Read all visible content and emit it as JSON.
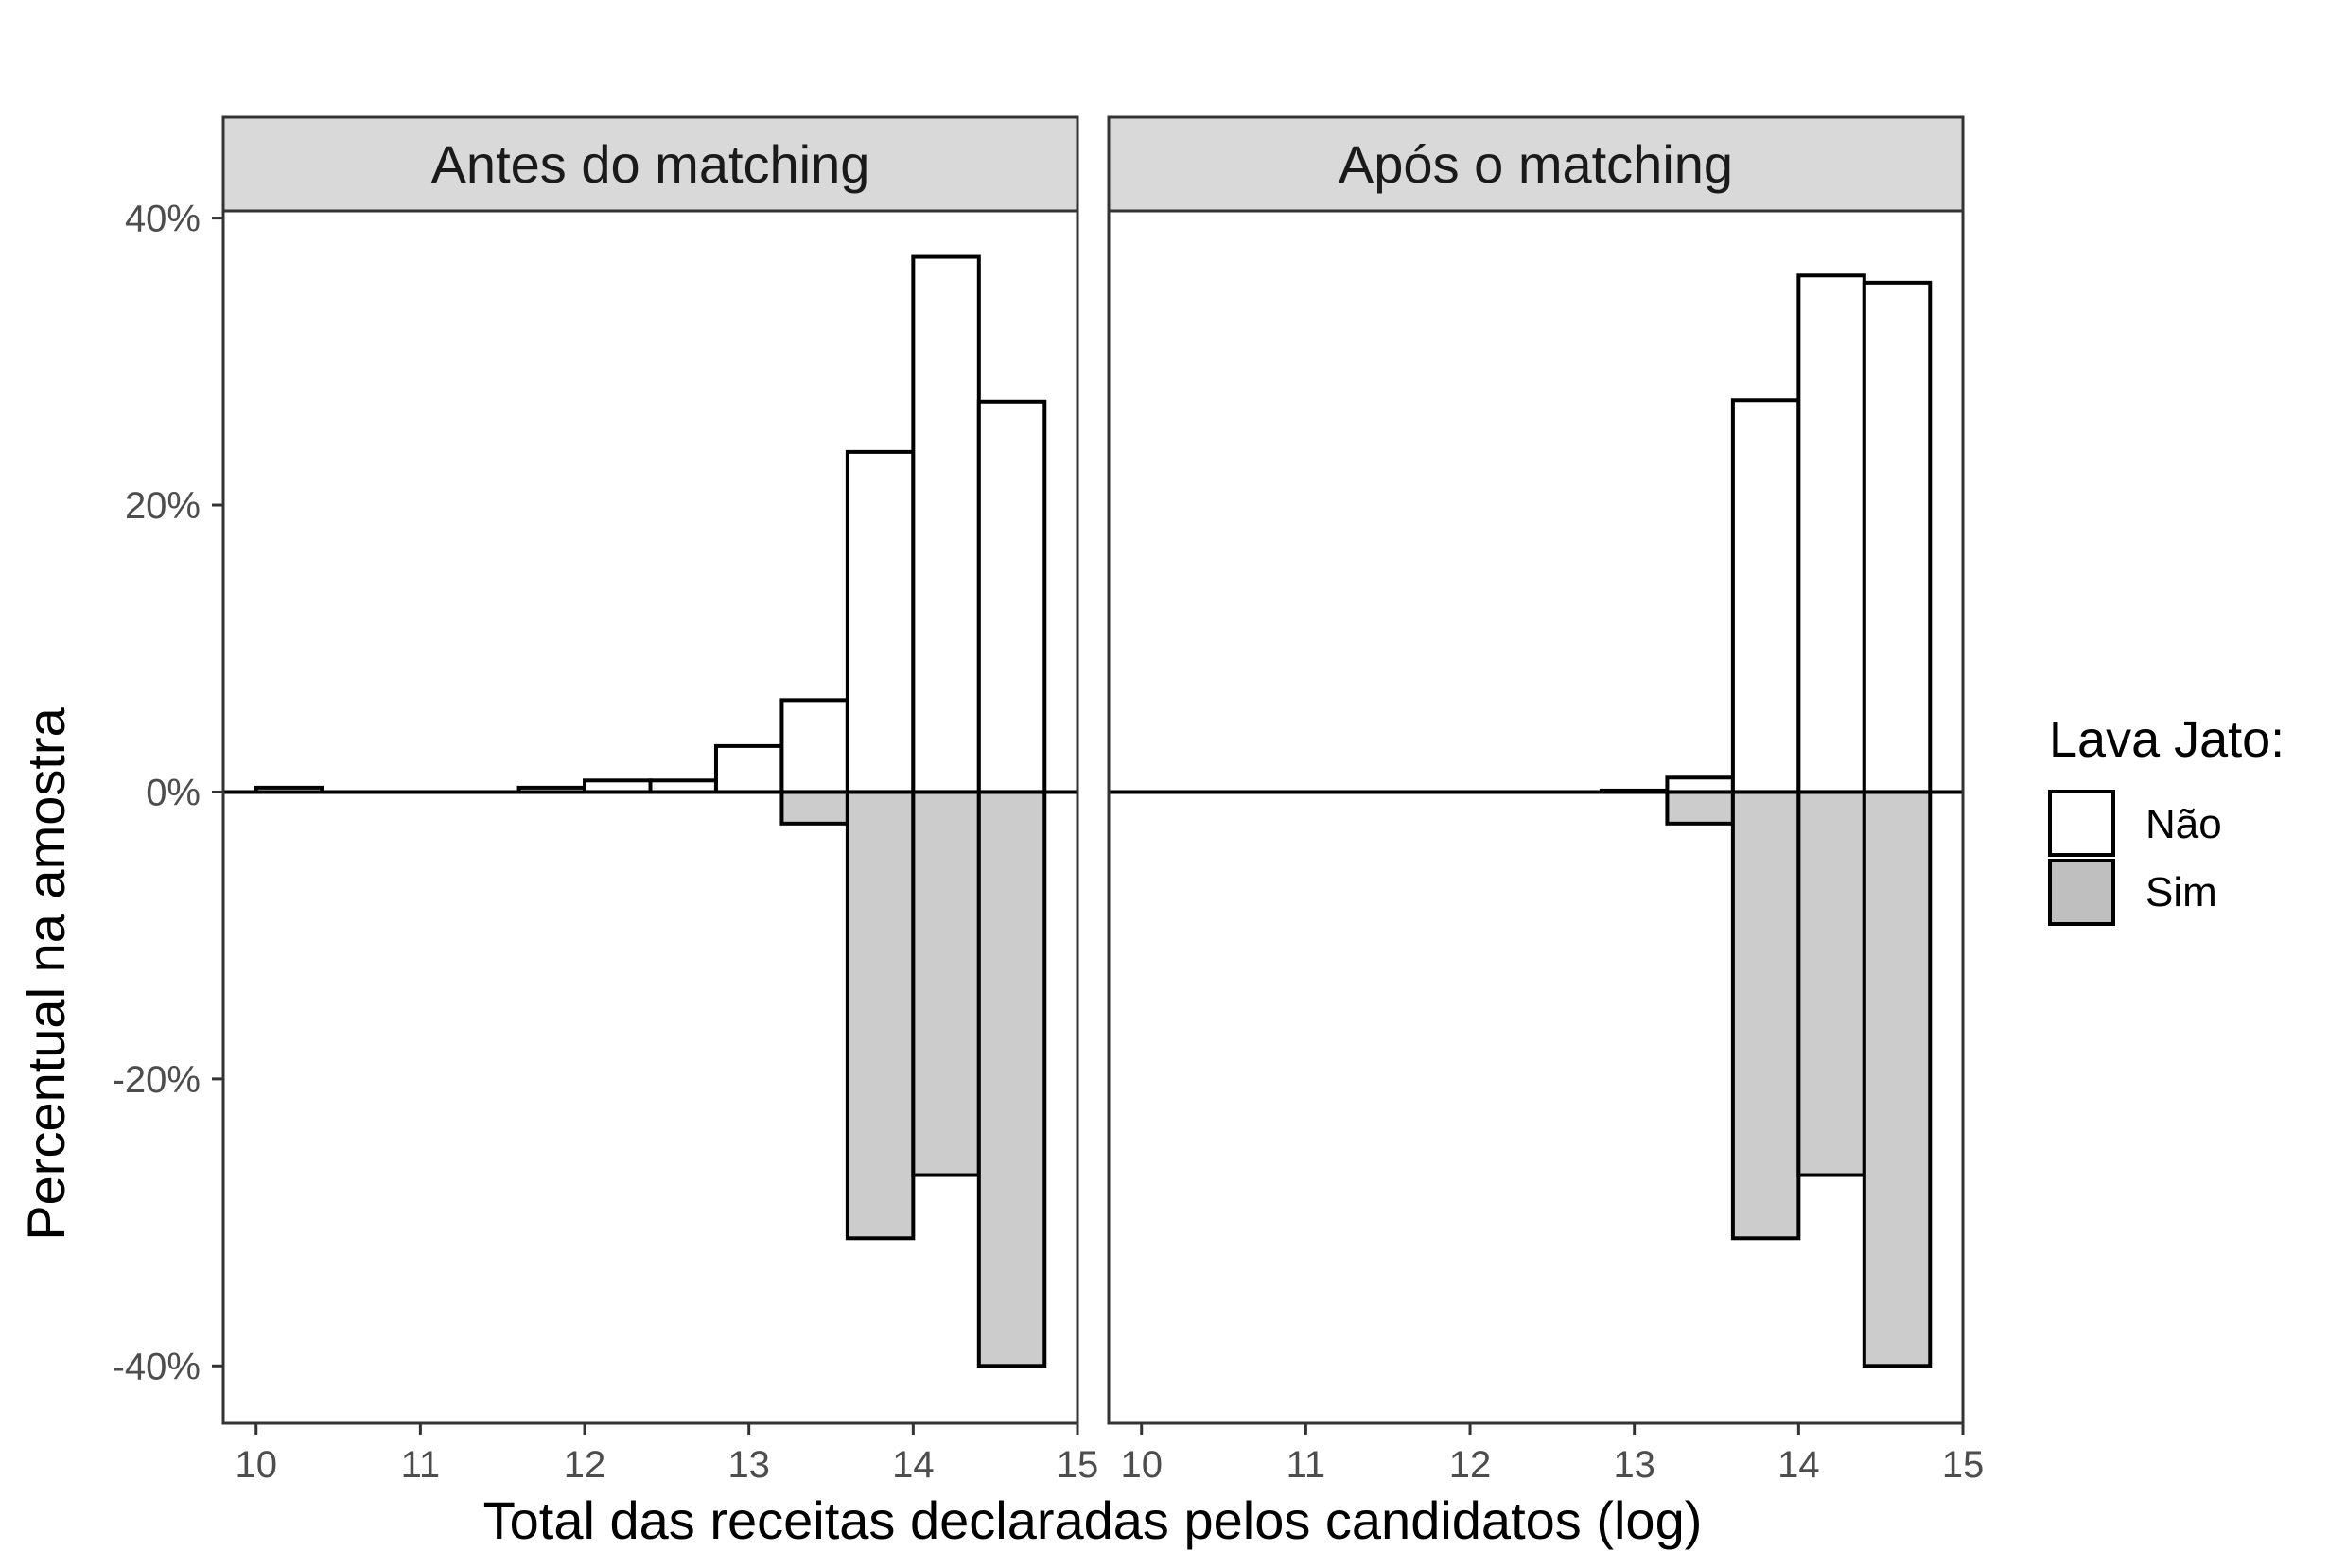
{
  "chart_data": {
    "type": "bar",
    "subtype": "mirrored-histogram-facets",
    "xlabel": "Total das receitas declaradas pelos candidatos (log)",
    "ylabel": "Percentual na amostra",
    "xlim": [
      9.8,
      15
    ],
    "ylim": [
      -44,
      40.5
    ],
    "x_ticks": [
      10,
      11,
      12,
      13,
      14,
      15
    ],
    "y_ticks": [
      40,
      20,
      0,
      -20,
      -40
    ],
    "y_tick_labels": [
      "40%",
      "20%",
      "0%",
      "-20%",
      "-40%"
    ],
    "bin_width": 0.4,
    "legend": {
      "title": "Lava Jato:",
      "position": "right",
      "entries": [
        {
          "label": "Não",
          "fill": "#ffffff"
        },
        {
          "label": "Sim",
          "fill": "#bfbfbf"
        }
      ]
    },
    "colors": {
      "nao_fill": "#ffffff",
      "sim_fill": "#cccccc",
      "stroke": "#000000",
      "strip_bg": "#d9d9d9",
      "panel_border": "#333333"
    },
    "panels": [
      {
        "label": "Antes do matching",
        "series": [
          {
            "name": "Não",
            "bins": [
              {
                "x0": 10.0,
                "x1": 10.4,
                "value": 0.3
              },
              {
                "x0": 10.4,
                "x1": 10.8,
                "value": 0
              },
              {
                "x0": 10.8,
                "x1": 11.2,
                "value": 0
              },
              {
                "x0": 11.2,
                "x1": 11.6,
                "value": 0
              },
              {
                "x0": 11.6,
                "x1": 12.0,
                "value": 0.3
              },
              {
                "x0": 12.0,
                "x1": 12.4,
                "value": 0.8
              },
              {
                "x0": 12.4,
                "x1": 12.8,
                "value": 0.8
              },
              {
                "x0": 12.8,
                "x1": 13.2,
                "value": 3.2
              },
              {
                "x0": 13.2,
                "x1": 13.6,
                "value": 6.4
              },
              {
                "x0": 13.6,
                "x1": 14.0,
                "value": 23.7
              },
              {
                "x0": 14.0,
                "x1": 14.4,
                "value": 37.3
              },
              {
                "x0": 14.4,
                "x1": 14.8,
                "value": 27.2
              }
            ]
          },
          {
            "name": "Sim",
            "bins": [
              {
                "x0": 13.2,
                "x1": 13.6,
                "value": -2.2
              },
              {
                "x0": 13.6,
                "x1": 14.0,
                "value": -31.1
              },
              {
                "x0": 14.0,
                "x1": 14.4,
                "value": -26.7
              },
              {
                "x0": 14.4,
                "x1": 14.8,
                "value": -40.0
              }
            ]
          }
        ]
      },
      {
        "label": "Após o matching",
        "series": [
          {
            "name": "Não",
            "bins": [
              {
                "x0": 12.8,
                "x1": 13.2,
                "value": 0.1
              },
              {
                "x0": 13.2,
                "x1": 13.6,
                "value": 1.0
              },
              {
                "x0": 13.6,
                "x1": 14.0,
                "value": 27.3
              },
              {
                "x0": 14.0,
                "x1": 14.4,
                "value": 36.0
              },
              {
                "x0": 14.4,
                "x1": 14.8,
                "value": 35.5
              }
            ]
          },
          {
            "name": "Sim",
            "bins": [
              {
                "x0": 13.2,
                "x1": 13.6,
                "value": -2.2
              },
              {
                "x0": 13.6,
                "x1": 14.0,
                "value": -31.1
              },
              {
                "x0": 14.0,
                "x1": 14.4,
                "value": -26.7
              },
              {
                "x0": 14.4,
                "x1": 14.8,
                "value": -40.0
              }
            ]
          }
        ]
      }
    ]
  }
}
